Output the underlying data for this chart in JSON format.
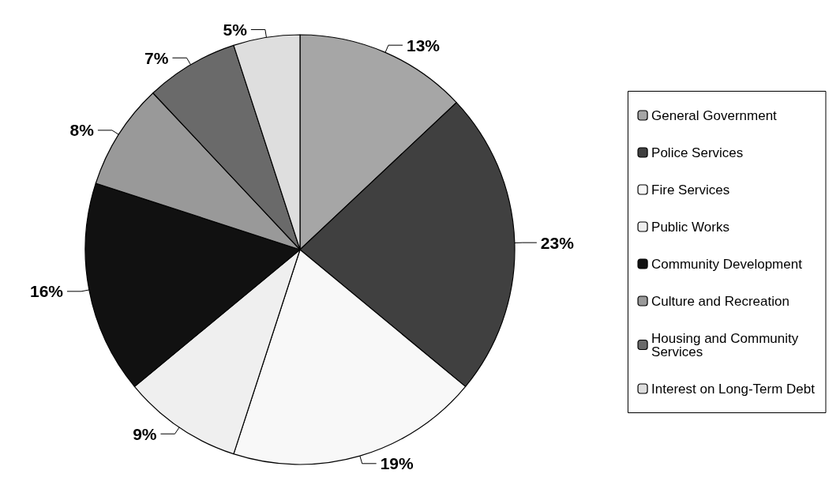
{
  "chart_data": {
    "type": "pie",
    "categories": [
      "General Government",
      "Police Services",
      "Fire Services",
      "Public Works",
      "Community Development",
      "Culture and Recreation",
      "Housing and Community Services",
      "Interest on Long-Term Debt"
    ],
    "values": [
      13,
      23,
      19,
      9,
      16,
      8,
      7,
      5
    ],
    "colors": [
      "#a6a6a6",
      "#404040",
      "#f8f8f8",
      "#efefef",
      "#111111",
      "#999999",
      "#6a6a6a",
      "#dedede"
    ],
    "value_labels": [
      "13%",
      "23%",
      "19%",
      "9%",
      "16%",
      "8%",
      "7%",
      "5%"
    ],
    "legend": "right"
  }
}
